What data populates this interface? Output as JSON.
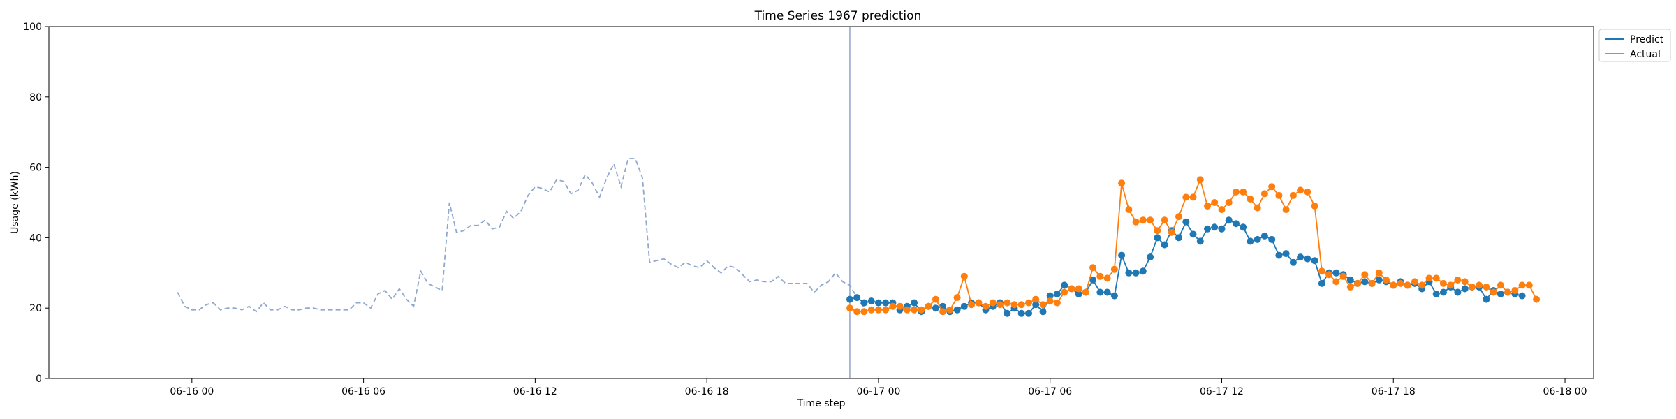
{
  "chart_data": {
    "type": "line",
    "title": "Time Series 1967 prediction",
    "xlabel": "Time step",
    "ylabel": "Usage (kWh)",
    "ylim": [
      0,
      100
    ],
    "yticks": [
      0,
      20,
      40,
      60,
      80,
      100
    ],
    "xlim": [
      "2024-06-15T19:00",
      "2024-06-18T01:00"
    ],
    "xticks": [
      {
        "t": "2024-06-16T00:00",
        "label": "06-16 00"
      },
      {
        "t": "2024-06-16T06:00",
        "label": "06-16 06"
      },
      {
        "t": "2024-06-16T12:00",
        "label": "06-16 12"
      },
      {
        "t": "2024-06-16T18:00",
        "label": "06-16 18"
      },
      {
        "t": "2024-06-17T00:00",
        "label": "06-17 00"
      },
      {
        "t": "2024-06-17T06:00",
        "label": "06-17 06"
      },
      {
        "t": "2024-06-17T12:00",
        "label": "06-17 12"
      },
      {
        "t": "2024-06-17T18:00",
        "label": "06-17 18"
      },
      {
        "t": "2024-06-18T00:00",
        "label": "06-18 00"
      }
    ],
    "split_time": "2024-06-16T23:00",
    "interval_minutes": 15,
    "legend_position": "upper-right-outside",
    "grid": false,
    "history": {
      "start": "2024-06-15T23:30",
      "interval_minutes": 15,
      "color": "#8fa8cc",
      "style": "dashed",
      "values": [
        24.5,
        20.5,
        19.5,
        19.5,
        21.0,
        21.5,
        19.5,
        20.0,
        20.0,
        19.5,
        20.5,
        19.0,
        21.5,
        19.5,
        19.5,
        20.5,
        19.5,
        19.5,
        20.0,
        20.0,
        19.5,
        19.5,
        19.5,
        19.5,
        19.5,
        21.5,
        21.5,
        20.0,
        24.0,
        25.0,
        22.5,
        25.5,
        22.5,
        20.5,
        30.5,
        27.0,
        26.0,
        25.0,
        50.0,
        41.5,
        42.0,
        43.5,
        43.5,
        45.0,
        42.5,
        43.0,
        47.5,
        45.5,
        47.5,
        52.0,
        54.5,
        54.0,
        53.0,
        56.5,
        56.0,
        52.5,
        53.5,
        58.0,
        55.5,
        51.5,
        57.0,
        61.0,
        54.5,
        62.5,
        62.5,
        57.0,
        33.0,
        33.5,
        34.0,
        32.5,
        31.5,
        33.0,
        32.0,
        31.5,
        33.5,
        31.5,
        30.0,
        32.0,
        31.5,
        29.5,
        27.5,
        28.0,
        27.5,
        27.5,
        29.0,
        27.0,
        27.0,
        27.0,
        27.0,
        24.5,
        26.5,
        27.5,
        30.0,
        27.5,
        26.5,
        23.0,
        20.0
      ]
    },
    "series": [
      {
        "name": "Predict",
        "color": "#1f77b4",
        "start": "2024-06-16T23:00",
        "interval_minutes": 15,
        "values": [
          22.5,
          23.0,
          21.5,
          22.0,
          21.5,
          21.5,
          21.5,
          19.5,
          20.5,
          21.5,
          19.0,
          20.5,
          20.0,
          20.5,
          19.0,
          19.5,
          20.5,
          21.5,
          21.5,
          19.5,
          20.5,
          21.5,
          18.5,
          20.0,
          18.5,
          18.5,
          21.0,
          19.0,
          23.5,
          24.0,
          26.5,
          25.5,
          24.0,
          24.5,
          28.0,
          24.5,
          24.5,
          23.5,
          35.0,
          30.0,
          30.0,
          30.5,
          34.5,
          40.0,
          38.0,
          42.0,
          40.0,
          44.5,
          41.0,
          39.0,
          42.5,
          43.0,
          42.5,
          45.0,
          44.0,
          43.0,
          39.0,
          39.5,
          40.5,
          39.5,
          35.0,
          35.5,
          33.0,
          34.5,
          34.0,
          33.5,
          27.0,
          30.0,
          30.0,
          29.5,
          28.0,
          27.0,
          27.5,
          27.0,
          28.0,
          27.5,
          26.5,
          27.5,
          26.5,
          27.0,
          25.5,
          27.5,
          24.0,
          24.5,
          26.0,
          24.5,
          25.5,
          26.0,
          26.0,
          22.5,
          25.0,
          24.0,
          24.5,
          24.0,
          23.5
        ]
      },
      {
        "name": "Actual",
        "color": "#ff7f0e",
        "start": "2024-06-16T23:00",
        "interval_minutes": 15,
        "values": [
          20.0,
          19.0,
          19.0,
          19.5,
          19.5,
          19.5,
          20.5,
          20.5,
          19.5,
          19.5,
          19.5,
          20.5,
          22.5,
          19.0,
          19.5,
          23.0,
          29.0,
          21.0,
          21.5,
          20.5,
          21.5,
          21.0,
          21.5,
          21.0,
          21.0,
          21.5,
          22.5,
          21.0,
          22.0,
          21.5,
          24.5,
          25.5,
          25.5,
          24.5,
          31.5,
          29.0,
          28.5,
          31.0,
          55.5,
          48.0,
          44.5,
          45.0,
          45.0,
          42.0,
          45.0,
          41.5,
          46.0,
          51.5,
          51.5,
          56.5,
          49.0,
          50.0,
          48.0,
          50.0,
          53.0,
          53.0,
          51.0,
          48.5,
          52.5,
          54.5,
          52.0,
          48.0,
          52.0,
          53.5,
          53.0,
          49.0,
          30.5,
          29.5,
          27.5,
          29.0,
          26.0,
          27.0,
          29.5,
          27.0,
          30.0,
          28.0,
          26.5,
          27.0,
          26.5,
          27.5,
          26.5,
          28.5,
          28.5,
          27.0,
          26.5,
          28.0,
          27.5,
          26.0,
          26.5,
          26.0,
          24.5,
          26.5,
          24.5,
          25.0,
          26.5,
          26.5,
          22.5
        ]
      }
    ]
  }
}
